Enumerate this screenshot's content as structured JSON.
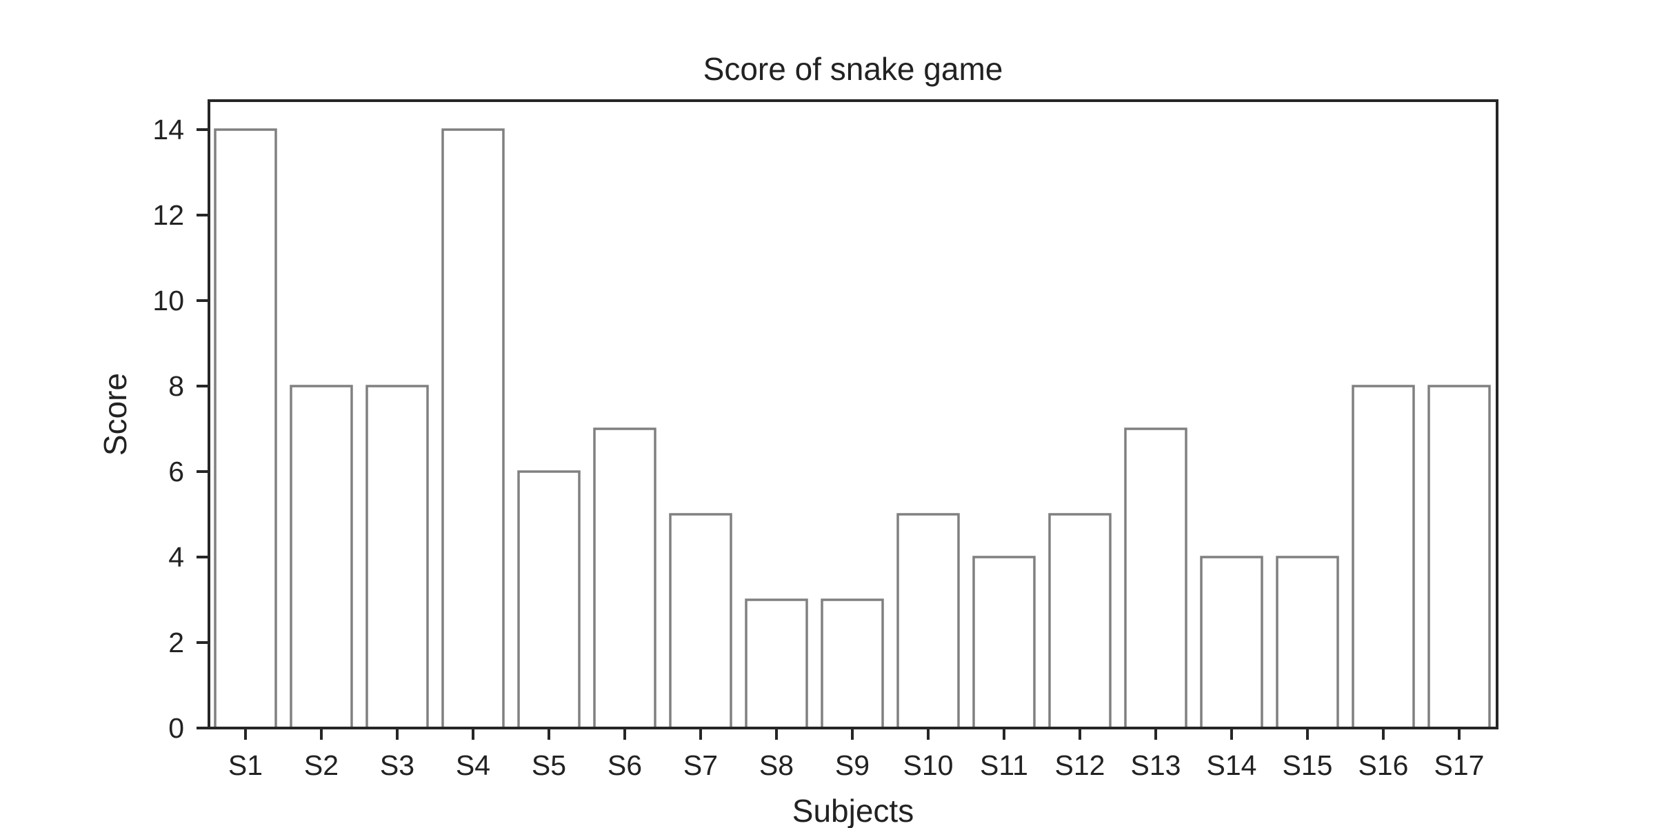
{
  "chart_data": {
    "type": "bar",
    "title": "Score of snake game",
    "xlabel": "Subjects",
    "ylabel": "Score",
    "categories": [
      "S1",
      "S2",
      "S3",
      "S4",
      "S5",
      "S6",
      "S7",
      "S8",
      "S9",
      "S10",
      "S11",
      "S12",
      "S13",
      "S14",
      "S15",
      "S16",
      "S17"
    ],
    "values": [
      14,
      8,
      8,
      14,
      6,
      7,
      5,
      3,
      3,
      5,
      4,
      5,
      7,
      4,
      4,
      8,
      8
    ],
    "ylim": [
      0,
      14.6
    ],
    "yticks": [
      0,
      2,
      4,
      6,
      8,
      10,
      12,
      14
    ],
    "grid": false,
    "bar_fill": "#ffffff",
    "bar_edge": "#808080"
  }
}
